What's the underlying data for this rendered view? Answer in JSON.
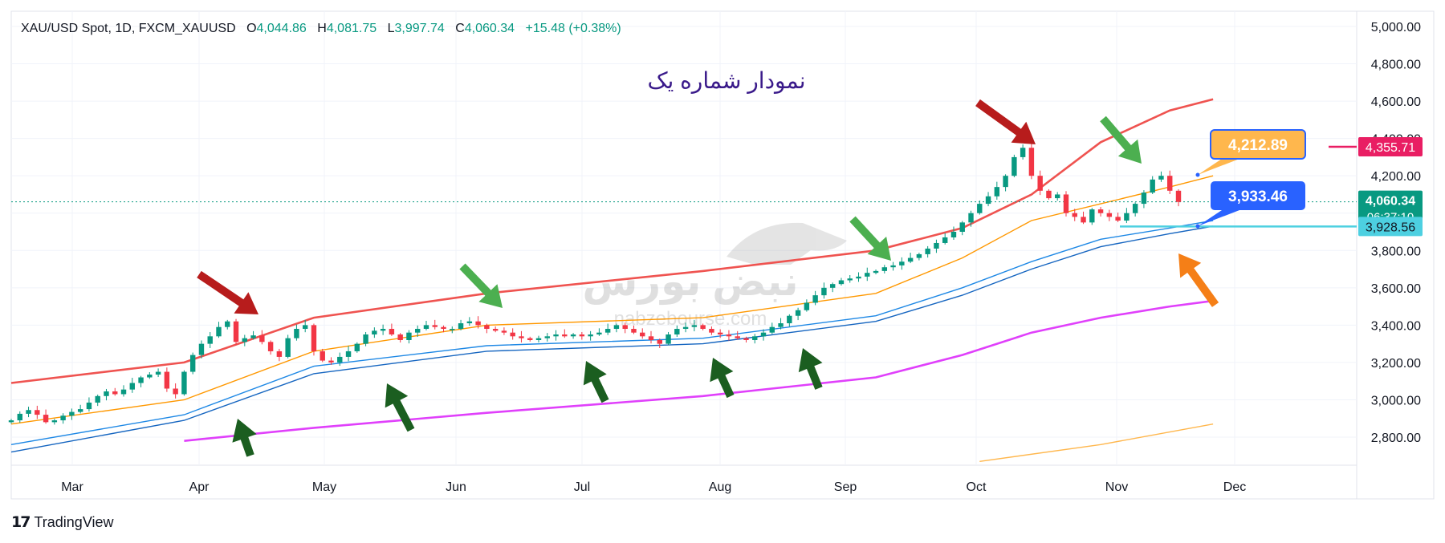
{
  "header": {
    "symbol": "XAU/USD Spot, 1D, FXCM_XAUUSD",
    "open_label": "O",
    "open": "4,044.86",
    "high_label": "H",
    "high": "4,081.75",
    "low_label": "L",
    "low": "3,997.74",
    "close_label": "C",
    "close": "4,060.34",
    "change": "+15.48 (+0.38%)"
  },
  "footer": {
    "brand": "TradingView"
  },
  "chart_data": {
    "type": "candlestick",
    "title": "نمودار شماره یک",
    "watermark": {
      "text": "نبض بورس",
      "url_text": "nabzebourse.com"
    },
    "x_ticks": [
      "Mar",
      "Apr",
      "May",
      "Jun",
      "Jul",
      "Aug",
      "Sep",
      "Oct",
      "Nov",
      "Dec"
    ],
    "y_ticks": [
      "5,000.00",
      "4,800.00",
      "4,600.00",
      "4,400.00",
      "4,200.00",
      "4,000.00",
      "3,800.00",
      "3,600.00",
      "3,400.00",
      "3,200.00",
      "3,000.00",
      "2,800.00"
    ],
    "ylim": [
      2700,
      5000
    ],
    "price_labels": [
      {
        "value": 4355.71,
        "text": "4,355.71",
        "color": "#e91e63"
      },
      {
        "value": 4060.34,
        "text": "4,060.34",
        "subtext": "06:37:10",
        "color": "#089981"
      },
      {
        "value": 3928.56,
        "text": "3,928.56",
        "color": "#4dd0e1"
      }
    ],
    "callouts": [
      {
        "value": 4212.89,
        "text": "4,212.89",
        "color": "#ffb74d"
      },
      {
        "value": 3933.46,
        "text": "3,933.46",
        "color": "#2962ff"
      }
    ],
    "close_series": [
      2890,
      2925,
      2945,
      2920,
      2880,
      2890,
      2915,
      2935,
      2950,
      2985,
      3020,
      3045,
      3030,
      3055,
      3090,
      3120,
      3135,
      3150,
      3060,
      3030,
      3150,
      3240,
      3300,
      3340,
      3390,
      3420,
      3310,
      3330,
      3345,
      3310,
      3260,
      3230,
      3330,
      3380,
      3400,
      3260,
      3210,
      3200,
      3230,
      3260,
      3300,
      3350,
      3370,
      3380,
      3350,
      3320,
      3360,
      3380,
      3400,
      3390,
      3380,
      3380,
      3410,
      3420,
      3400,
      3380,
      3370,
      3360,
      3340,
      3330,
      3320,
      3330,
      3340,
      3350,
      3340,
      3350,
      3340,
      3350,
      3360,
      3380,
      3400,
      3380,
      3360,
      3340,
      3320,
      3300,
      3350,
      3380,
      3390,
      3400,
      3380,
      3360,
      3350,
      3340,
      3330,
      3320,
      3340,
      3360,
      3390,
      3410,
      3450,
      3480,
      3520,
      3560,
      3600,
      3620,
      3640,
      3650,
      3660,
      3680,
      3690,
      3710,
      3720,
      3740,
      3760,
      3780,
      3810,
      3840,
      3870,
      3900,
      3950,
      4000,
      4050,
      4090,
      4140,
      4200,
      4300,
      4350,
      4200,
      4120,
      4080,
      4100,
      4000,
      3980,
      3950,
      4020,
      4000,
      3980,
      3960,
      4000,
      4050,
      4110,
      4180,
      4200,
      4120,
      4060
    ],
    "indicator_lines": [
      {
        "name": "",
        "color": "#ef5350",
        "points": [
          [
            0,
            3090
          ],
          [
            20,
            3200
          ],
          [
            35,
            3440
          ],
          [
            55,
            3570
          ],
          [
            80,
            3690
          ],
          [
            100,
            3800
          ],
          [
            110,
            3920
          ],
          [
            118,
            4100
          ],
          [
            126,
            4380
          ],
          [
            134,
            4550
          ],
          [
            139,
            4610
          ]
        ]
      },
      {
        "name": "",
        "color": "#ff9800",
        "points": [
          [
            0,
            2870
          ],
          [
            20,
            3000
          ],
          [
            35,
            3260
          ],
          [
            55,
            3400
          ],
          [
            80,
            3440
          ],
          [
            100,
            3570
          ],
          [
            110,
            3760
          ],
          [
            118,
            3960
          ],
          [
            126,
            4050
          ],
          [
            134,
            4140
          ],
          [
            139,
            4200
          ]
        ]
      },
      {
        "name": "",
        "color": "#1e88e5",
        "points": [
          [
            0,
            2760
          ],
          [
            20,
            2920
          ],
          [
            35,
            3180
          ],
          [
            55,
            3290
          ],
          [
            80,
            3330
          ],
          [
            100,
            3450
          ],
          [
            110,
            3600
          ],
          [
            118,
            3740
          ],
          [
            126,
            3860
          ],
          [
            134,
            3920
          ],
          [
            139,
            3960
          ]
        ]
      },
      {
        "name": "",
        "color": "#1565c0",
        "points": [
          [
            0,
            2720
          ],
          [
            20,
            2890
          ],
          [
            35,
            3140
          ],
          [
            55,
            3260
          ],
          [
            80,
            3300
          ],
          [
            100,
            3420
          ],
          [
            110,
            3560
          ],
          [
            118,
            3700
          ],
          [
            126,
            3820
          ],
          [
            134,
            3890
          ],
          [
            139,
            3930
          ]
        ]
      },
      {
        "name": "",
        "color": "#e040fb",
        "points": [
          [
            20,
            2780
          ],
          [
            35,
            2850
          ],
          [
            55,
            2930
          ],
          [
            80,
            3020
          ],
          [
            100,
            3120
          ],
          [
            110,
            3240
          ],
          [
            118,
            3360
          ],
          [
            126,
            3440
          ],
          [
            134,
            3500
          ],
          [
            139,
            3530
          ]
        ]
      },
      {
        "name": "",
        "color": "#ffb74d",
        "points": [
          [
            112,
            2670
          ],
          [
            126,
            2760
          ],
          [
            139,
            2870
          ]
        ]
      }
    ]
  }
}
